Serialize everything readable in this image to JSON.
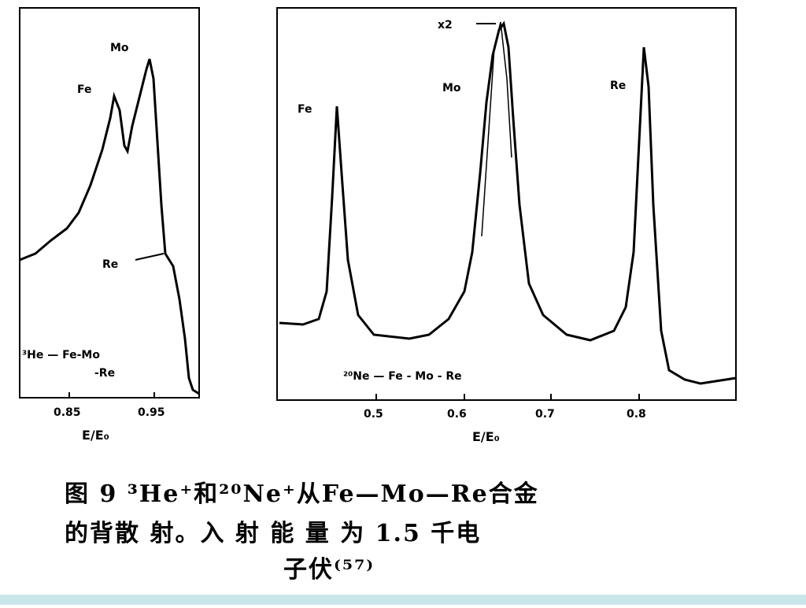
{
  "figure": {
    "left": {
      "peak_labels": [
        "Mo",
        "Fe",
        "Re"
      ],
      "annotation": [
        "³He — Fe-Mo",
        "-Re"
      ],
      "xticks": [
        "0.85",
        "0.95"
      ],
      "xlabel": "E/E₀"
    },
    "right": {
      "peak_labels": [
        "x2",
        "Mo",
        "Fe",
        "Re"
      ],
      "annotation": "²⁰Ne — Fe - Mo - Re",
      "xticks": [
        "0.5",
        "0.6",
        "0.7",
        "0.8"
      ],
      "xlabel": "E/E₀"
    },
    "caption": [
      "图 9  ³He⁺和²⁰Ne⁺从Fe—Mo—Re合金",
      "的背散 射。入 射 能 量 为 1.5 千电",
      "子伏⁽⁵⁷⁾"
    ]
  }
}
